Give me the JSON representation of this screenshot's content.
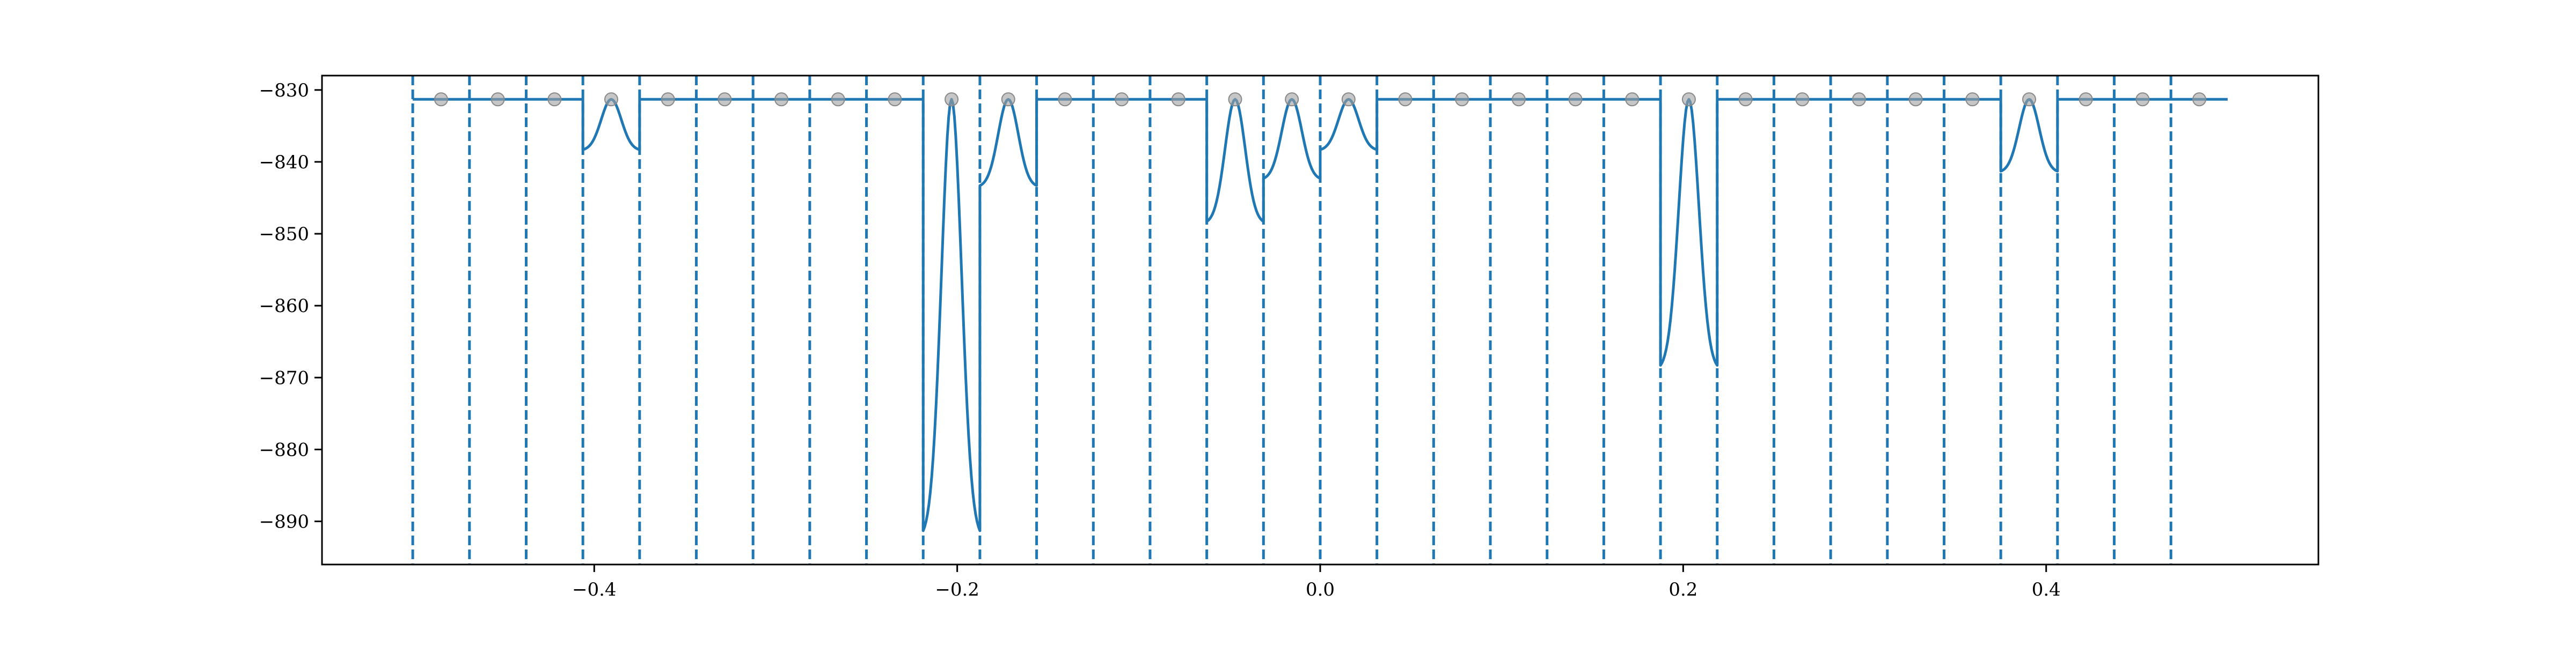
{
  "chart_data": {
    "type": "line",
    "title": "",
    "xlabel": "",
    "ylabel": "",
    "xlim": [
      -0.55,
      0.55
    ],
    "ylim": [
      -896,
      -828
    ],
    "x_ticks": [
      -0.4,
      -0.2,
      0.0,
      0.2,
      0.4
    ],
    "x_tick_labels": [
      "−0.4",
      "−0.2",
      "0.0",
      "0.2",
      "0.4"
    ],
    "y_ticks": [
      -830,
      -840,
      -850,
      -860,
      -870,
      -880,
      -890
    ],
    "y_tick_labels": [
      "−830",
      "−840",
      "−850",
      "−860",
      "−870",
      "−880",
      "−890"
    ],
    "grid": false,
    "boundary_lines": [
      -0.5,
      -0.46875,
      -0.4375,
      -0.40625,
      -0.375,
      -0.34375,
      -0.3125,
      -0.28125,
      -0.25,
      -0.21875,
      -0.1875,
      -0.15625,
      -0.125,
      -0.09375,
      -0.0625,
      -0.03125,
      0.0,
      0.03125,
      0.0625,
      0.09375,
      0.125,
      0.15625,
      0.1875,
      0.21875,
      0.25,
      0.28125,
      0.3125,
      0.34375,
      0.375,
      0.40625,
      0.4375,
      0.46875
    ],
    "segments": [
      {
        "x0": -0.5,
        "x1": -0.40625,
        "depth": 0
      },
      {
        "x0": -0.40625,
        "x1": -0.375,
        "depth": 7
      },
      {
        "x0": -0.375,
        "x1": -0.21875,
        "depth": 0
      },
      {
        "x0": -0.21875,
        "x1": -0.1875,
        "depth": 60
      },
      {
        "x0": -0.1875,
        "x1": -0.15625,
        "depth": 12
      },
      {
        "x0": -0.15625,
        "x1": -0.0625,
        "depth": 0
      },
      {
        "x0": -0.0625,
        "x1": -0.03125,
        "depth": 17
      },
      {
        "x0": -0.03125,
        "x1": 0.0,
        "depth": 11
      },
      {
        "x0": 0.0,
        "x1": 0.03125,
        "depth": 7
      },
      {
        "x0": 0.03125,
        "x1": 0.1875,
        "depth": 0
      },
      {
        "x0": 0.1875,
        "x1": 0.21875,
        "depth": 37
      },
      {
        "x0": 0.21875,
        "x1": 0.375,
        "depth": 0
      },
      {
        "x0": 0.375,
        "x1": 0.40625,
        "depth": 10
      },
      {
        "x0": 0.40625,
        "x1": 0.5,
        "depth": 0
      }
    ],
    "baseline": -831.3,
    "points": {
      "x": [
        -0.484375,
        -0.453125,
        -0.421875,
        -0.390625,
        -0.359375,
        -0.328125,
        -0.296875,
        -0.265625,
        -0.234375,
        -0.203125,
        -0.171875,
        -0.140625,
        -0.109375,
        -0.078125,
        -0.046875,
        -0.015625,
        0.015625,
        0.046875,
        0.078125,
        0.109375,
        0.140625,
        0.171875,
        0.203125,
        0.234375,
        0.265625,
        0.296875,
        0.328125,
        0.359375,
        0.390625,
        0.421875,
        0.453125,
        0.484375
      ],
      "y": [
        -831.3,
        -831.3,
        -831.3,
        -831.3,
        -831.3,
        -831.3,
        -831.3,
        -831.3,
        -831.3,
        -831.3,
        -831.3,
        -831.3,
        -831.3,
        -831.3,
        -831.3,
        -831.3,
        -831.3,
        -831.3,
        -831.3,
        -831.3,
        -831.3,
        -831.3,
        -831.3,
        -831.3,
        -831.3,
        -831.3,
        -831.3,
        -831.3,
        -831.3,
        -831.3,
        -831.3,
        -831.3
      ]
    },
    "colors": {
      "line": "#1f77b4",
      "boundary": "#1f77b4",
      "points": "#a0a0a0",
      "axes": "#000000"
    }
  }
}
